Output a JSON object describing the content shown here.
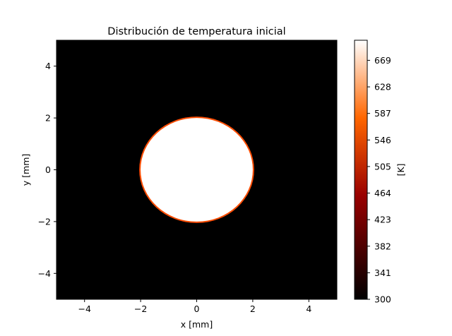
{
  "chart_data": {
    "type": "heatmap",
    "title": "Distribución de temperatura inicial",
    "xlabel": "x [mm]",
    "ylabel": "y [mm]",
    "xlim": [
      -5,
      5
    ],
    "ylim": [
      -5,
      5
    ],
    "x_ticks": [
      -4,
      -2,
      0,
      2,
      4
    ],
    "y_ticks": [
      -4,
      -2,
      0,
      2,
      4
    ],
    "x_tick_labels": [
      "−4",
      "−2",
      "0",
      "2",
      "4"
    ],
    "y_tick_labels": [
      "−4",
      "−2",
      "0",
      "2",
      "4"
    ],
    "colormap": "gist_heat",
    "grid": false,
    "background_value": 300,
    "hot_region": {
      "shape": "disk",
      "center": [
        0,
        0
      ],
      "radius": 2,
      "value": 700
    },
    "colorbar": {
      "label": "[K]",
      "vmin": 300,
      "vmax": 700,
      "ticks": [
        300,
        341,
        382,
        423,
        464,
        505,
        546,
        587,
        628,
        669
      ],
      "tick_labels": [
        "300",
        "341",
        "382",
        "423",
        "464",
        "505",
        "546",
        "587",
        "628",
        "669"
      ]
    }
  }
}
